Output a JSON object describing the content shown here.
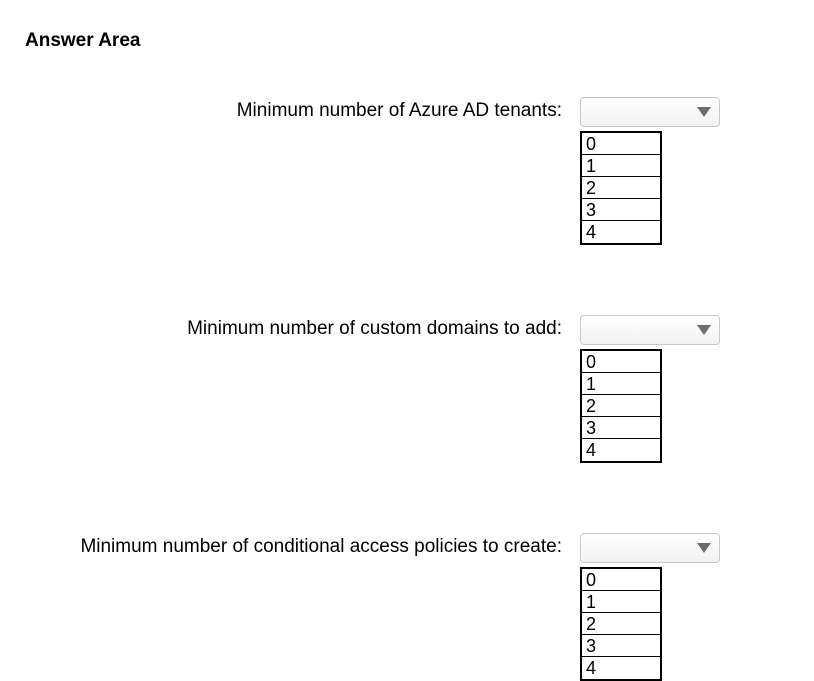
{
  "title": "Answer Area",
  "questions": [
    {
      "label": "Minimum number of Azure AD tenants:",
      "options": [
        "0",
        "1",
        "2",
        "3",
        "4"
      ]
    },
    {
      "label": "Minimum number of custom domains to add:",
      "options": [
        "0",
        "1",
        "2",
        "3",
        "4"
      ]
    },
    {
      "label": "Minimum number of conditional access policies to create:",
      "options": [
        "0",
        "1",
        "2",
        "3",
        "4"
      ]
    }
  ],
  "styles": {
    "background_color": "#ffffff",
    "text_color": "#000000",
    "title_fontsize": 19,
    "title_fontweight": "bold",
    "label_fontsize": 19,
    "option_fontsize": 18,
    "dropdown_bg_gradient": [
      "#ffffff",
      "#f2f2f2"
    ],
    "dropdown_border_color": "#c8c8c8",
    "dropdown_arrow_color": "#6d6d6d",
    "options_border_color": "#000000",
    "dropdown_width": 140,
    "dropdown_height": 30,
    "options_box_width": 82,
    "option_row_height": 22
  }
}
